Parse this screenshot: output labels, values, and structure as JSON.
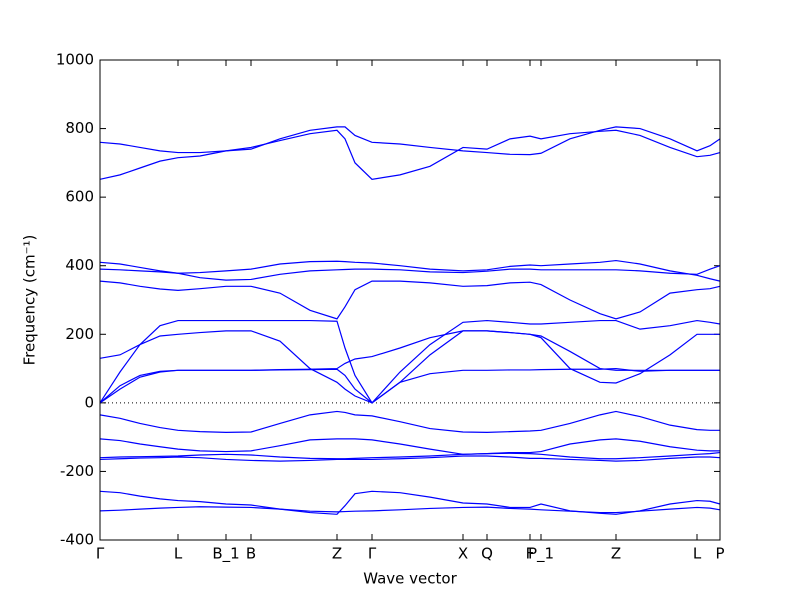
{
  "chart_data": {
    "type": "line",
    "xlabel": "Wave vector",
    "ylabel": "Frequency (cm⁻¹)",
    "x": [
      0,
      0.2,
      0.4,
      0.6,
      0.78,
      1.0,
      1.26,
      1.51,
      1.8,
      2.1,
      2.37,
      2.45,
      2.55,
      2.72,
      3.0,
      3.3,
      3.63,
      3.87,
      4.1,
      4.3,
      4.41,
      4.7,
      5.0,
      5.16,
      5.4,
      5.7,
      5.97,
      6.1,
      6.2
    ],
    "xlim": [
      0,
      6.2
    ],
    "xticks": [
      {
        "value": 0,
        "label": "Γ"
      },
      {
        "value": 0.78,
        "label": "L"
      },
      {
        "value": 1.26,
        "label": "B_1"
      },
      {
        "value": 1.51,
        "label": "B"
      },
      {
        "value": 2.37,
        "label": "Z"
      },
      {
        "value": 2.72,
        "label": "Γ"
      },
      {
        "value": 3.63,
        "label": "X"
      },
      {
        "value": 3.87,
        "label": "Q"
      },
      {
        "value": 4.3,
        "label": "F"
      },
      {
        "value": 4.41,
        "label": "P_1"
      },
      {
        "value": 5.16,
        "label": "Z"
      },
      {
        "value": 5.97,
        "label": "L"
      },
      {
        "value": 6.2,
        "label": "P"
      }
    ],
    "ylim": [
      -400,
      1000
    ],
    "yticks": [
      -400,
      -200,
      0,
      200,
      400,
      600,
      800,
      1000
    ],
    "reference_line": 0,
    "series": [
      {
        "color": "#0000ff",
        "values": [
          760,
          755,
          745,
          735,
          730,
          730,
          735,
          740,
          770,
          795,
          805,
          805,
          780,
          760,
          755,
          745,
          735,
          730,
          725,
          724,
          728,
          770,
          795,
          805,
          800,
          770,
          735,
          750,
          770
        ]
      },
      {
        "color": "#0000ff",
        "values": [
          652,
          665,
          685,
          705,
          715,
          720,
          735,
          745,
          765,
          785,
          795,
          770,
          700,
          652,
          665,
          690,
          745,
          740,
          770,
          778,
          770,
          785,
          792,
          795,
          780,
          745,
          718,
          722,
          730
        ]
      },
      {
        "color": "#0000ff",
        "values": [
          410,
          405,
          395,
          385,
          378,
          380,
          385,
          390,
          405,
          412,
          413,
          412,
          410,
          408,
          400,
          390,
          385,
          388,
          398,
          402,
          400,
          405,
          410,
          415,
          405,
          385,
          372,
          362,
          355
        ]
      },
      {
        "color": "#0000ff",
        "values": [
          390,
          388,
          385,
          382,
          378,
          365,
          358,
          360,
          375,
          385,
          388,
          389,
          390,
          390,
          388,
          382,
          380,
          384,
          390,
          390,
          388,
          388,
          388,
          388,
          385,
          378,
          375,
          390,
          400
        ]
      },
      {
        "color": "#0000ff",
        "values": [
          355,
          350,
          340,
          332,
          328,
          333,
          340,
          340,
          320,
          270,
          245,
          280,
          330,
          355,
          355,
          350,
          340,
          342,
          350,
          352,
          345,
          300,
          260,
          245,
          265,
          320,
          330,
          333,
          340
        ]
      },
      {
        "color": "#0000ff",
        "values": [
          0,
          90,
          170,
          225,
          240,
          240,
          240,
          240,
          240,
          240,
          238,
          160,
          80,
          0,
          90,
          170,
          235,
          240,
          235,
          230,
          230,
          235,
          240,
          240,
          215,
          225,
          240,
          235,
          230
        ]
      },
      {
        "color": "#0000ff",
        "values": [
          130,
          140,
          170,
          195,
          200,
          205,
          210,
          210,
          180,
          100,
          60,
          40,
          20,
          0,
          60,
          140,
          210,
          210,
          205,
          200,
          190,
          100,
          60,
          58,
          85,
          140,
          200,
          200,
          200
        ]
      },
      {
        "color": "#0000ff",
        "values": [
          0,
          50,
          80,
          92,
          95,
          95,
          95,
          95,
          97,
          98,
          100,
          115,
          128,
          135,
          160,
          190,
          210,
          210,
          205,
          200,
          195,
          150,
          100,
          95,
          95,
          95,
          95,
          95,
          95
        ]
      },
      {
        "color": "#0000ff",
        "values": [
          0,
          40,
          75,
          90,
          95,
          95,
          95,
          95,
          96,
          97,
          98,
          80,
          40,
          0,
          60,
          85,
          95,
          95,
          96,
          96,
          97,
          98,
          98,
          100,
          92,
          95,
          95,
          95,
          95
        ]
      },
      {
        "color": "#0000ff",
        "values": [
          -35,
          -45,
          -60,
          -72,
          -80,
          -84,
          -86,
          -85,
          -60,
          -35,
          -25,
          -28,
          -35,
          -38,
          -55,
          -75,
          -85,
          -86,
          -84,
          -82,
          -80,
          -60,
          -35,
          -25,
          -40,
          -65,
          -78,
          -80,
          -80
        ]
      },
      {
        "color": "#0000ff",
        "values": [
          -105,
          -110,
          -120,
          -128,
          -135,
          -140,
          -142,
          -140,
          -125,
          -108,
          -105,
          -105,
          -105,
          -108,
          -120,
          -135,
          -150,
          -148,
          -145,
          -145,
          -142,
          -120,
          -108,
          -105,
          -112,
          -128,
          -138,
          -140,
          -140
        ]
      },
      {
        "color": "#0000ff",
        "values": [
          -160,
          -158,
          -157,
          -156,
          -155,
          -152,
          -150,
          -152,
          -158,
          -162,
          -163,
          -163,
          -162,
          -160,
          -158,
          -155,
          -150,
          -148,
          -147,
          -148,
          -150,
          -158,
          -163,
          -163,
          -160,
          -155,
          -150,
          -148,
          -145
        ]
      },
      {
        "color": "#0000ff",
        "values": [
          -165,
          -163,
          -161,
          -160,
          -158,
          -160,
          -165,
          -168,
          -170,
          -168,
          -165,
          -165,
          -165,
          -165,
          -163,
          -160,
          -155,
          -155,
          -158,
          -162,
          -162,
          -165,
          -168,
          -170,
          -168,
          -162,
          -158,
          -158,
          -160
        ]
      },
      {
        "color": "#0000ff",
        "values": [
          -258,
          -262,
          -272,
          -280,
          -285,
          -288,
          -295,
          -298,
          -310,
          -320,
          -325,
          -300,
          -265,
          -258,
          -262,
          -275,
          -292,
          -295,
          -305,
          -305,
          -295,
          -315,
          -322,
          -325,
          -315,
          -295,
          -285,
          -287,
          -295
        ]
      },
      {
        "color": "#0000ff",
        "values": [
          -315,
          -313,
          -310,
          -307,
          -305,
          -303,
          -304,
          -305,
          -310,
          -316,
          -318,
          -317,
          -316,
          -315,
          -312,
          -308,
          -305,
          -304,
          -308,
          -310,
          -312,
          -316,
          -320,
          -320,
          -316,
          -310,
          -305,
          -307,
          -312
        ]
      }
    ]
  }
}
